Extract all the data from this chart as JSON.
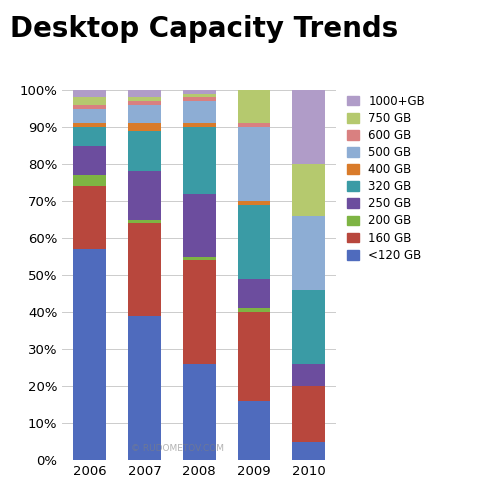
{
  "title": "Desktop Capacity Trends",
  "years": [
    "2006",
    "2007",
    "2008",
    "2009",
    "2010"
  ],
  "categories": [
    "<120 GB",
    "160 GB",
    "200 GB",
    "250 GB",
    "320 GB",
    "400 GB",
    "500 GB",
    "600 GB",
    "750 GB",
    "1000+GB"
  ],
  "colors": [
    "#4f6bbd",
    "#b8473d",
    "#7eb443",
    "#6c4d9e",
    "#3a9ba5",
    "#d97b2a",
    "#8dadd4",
    "#d98080",
    "#b5c96e",
    "#b09cc8"
  ],
  "data": {
    "<120 GB": [
      57,
      39,
      26,
      16,
      5
    ],
    "160 GB": [
      17,
      25,
      28,
      24,
      15
    ],
    "200 GB": [
      3,
      1,
      1,
      1,
      0
    ],
    "250 GB": [
      8,
      13,
      17,
      8,
      6
    ],
    "320 GB": [
      5,
      11,
      18,
      20,
      20
    ],
    "400 GB": [
      1,
      2,
      1,
      1,
      0
    ],
    "500 GB": [
      4,
      5,
      6,
      20,
      20
    ],
    "600 GB": [
      1,
      1,
      1,
      1,
      0
    ],
    "750 GB": [
      2,
      1,
      1,
      9,
      14
    ],
    "1000+GB": [
      2,
      2,
      1,
      0,
      20
    ]
  },
  "background_color": "#ffffff",
  "title_fontsize": 20,
  "legend_fontsize": 8.5,
  "tick_fontsize": 9.5,
  "bar_width": 0.6,
  "figsize": [
    4.8,
    5.0
  ],
  "dpi": 100
}
